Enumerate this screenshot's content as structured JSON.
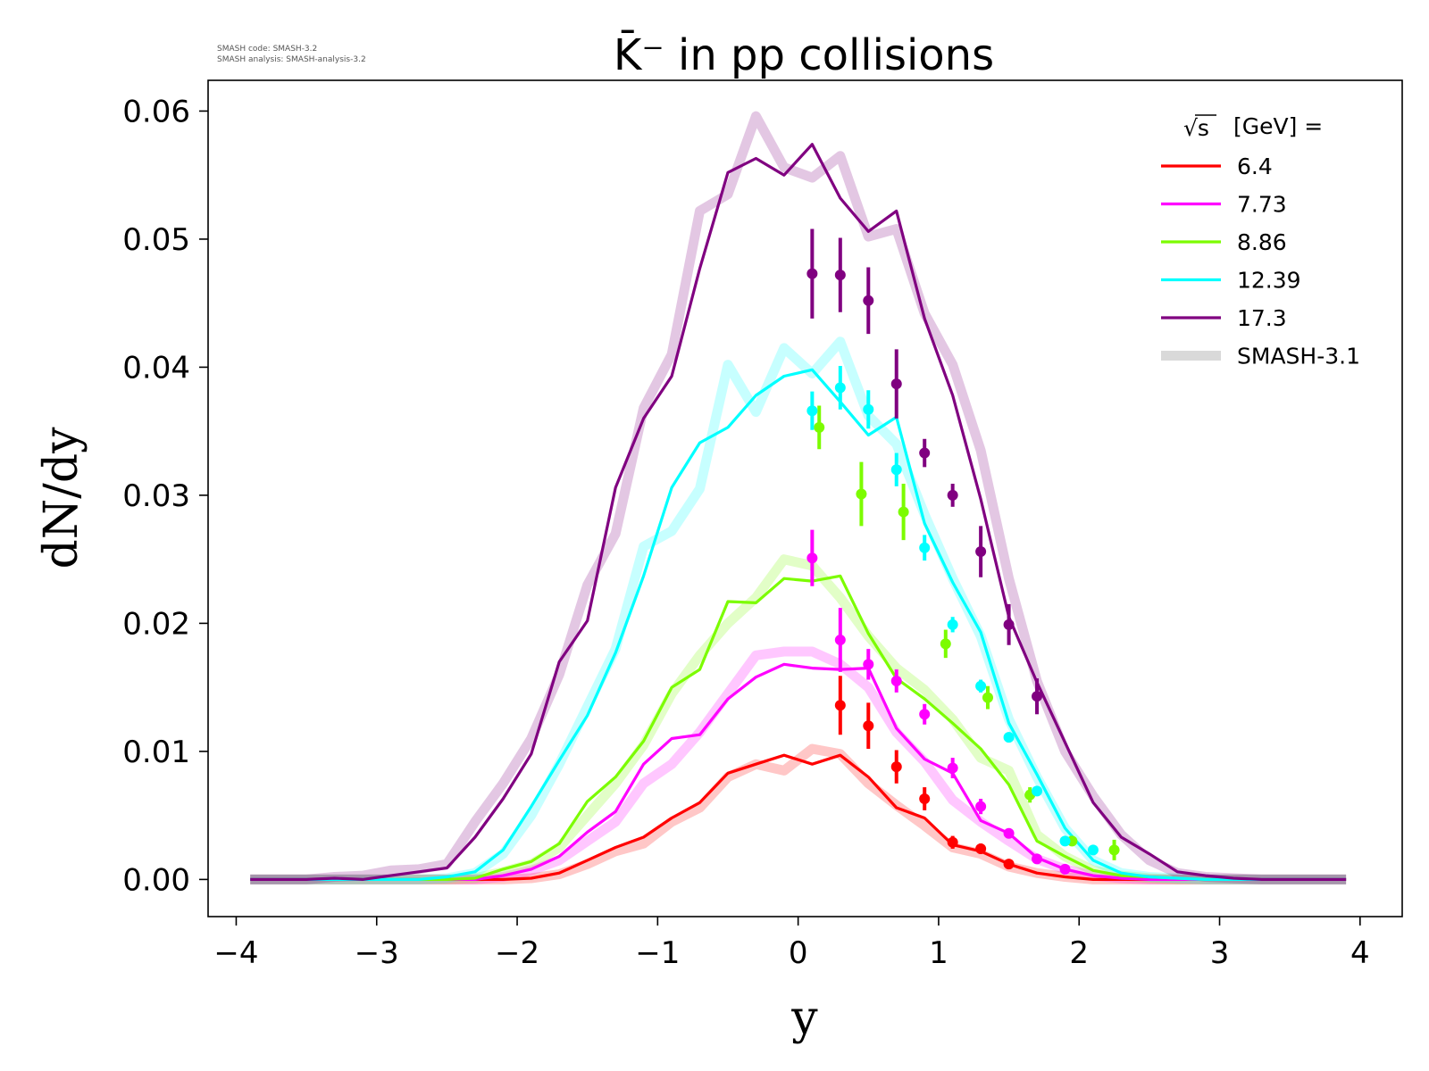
{
  "meta": {
    "line1": "SMASH code:      SMASH-3.2",
    "line2": "SMASH analysis: SMASH-analysis-3.2"
  },
  "chart_data": {
    "type": "line",
    "title": "K̄⁻ in pp collisions",
    "xlabel": "y",
    "ylabel": "dN/dy",
    "xlim": [
      -4.2,
      4.3
    ],
    "ylim": [
      -0.0029,
      0.0624
    ],
    "xticks": [
      -4,
      -3,
      -2,
      -1,
      0,
      1,
      2,
      3,
      4
    ],
    "xtick_labels": [
      "−4",
      "−3",
      "−2",
      "−1",
      "0",
      "1",
      "2",
      "3",
      "4"
    ],
    "yticks": [
      0.0,
      0.01,
      0.02,
      0.03,
      0.04,
      0.05,
      0.06
    ],
    "ytick_labels": [
      "0.00",
      "0.01",
      "0.02",
      "0.03",
      "0.04",
      "0.05",
      "0.06"
    ],
    "grid": false,
    "legend": {
      "placement": "top-right",
      "title": "[GeV] =",
      "title_symbol": "√s",
      "reference_label": "SMASH-3.1",
      "reference_color": "#d9d9d9"
    },
    "x": [
      -3.9,
      -3.7,
      -3.5,
      -3.3,
      -3.1,
      -2.9,
      -2.7,
      -2.5,
      -2.3,
      -2.1,
      -1.9,
      -1.7,
      -1.5,
      -1.3,
      -1.1,
      -0.9,
      -0.7,
      -0.5,
      -0.3,
      -0.1,
      0.1,
      0.3,
      0.5,
      0.7,
      0.9,
      1.1,
      1.3,
      1.5,
      1.7,
      1.9,
      2.1,
      2.3,
      2.5,
      2.7,
      2.9,
      3.1,
      3.3,
      3.5,
      3.7,
      3.9
    ],
    "series": [
      {
        "name": "6.4",
        "color": "#ff0000",
        "values": [
          0,
          0,
          0,
          0,
          0,
          0,
          0,
          0,
          0,
          0,
          0.0001,
          0.0005,
          0.0015,
          0.0025,
          0.0033,
          0.0048,
          0.006,
          0.0083,
          0.009,
          0.0097,
          0.009,
          0.0097,
          0.008,
          0.0056,
          0.0048,
          0.0027,
          0.0022,
          0.0012,
          0.0005,
          0.0002,
          0,
          0,
          0,
          0,
          0,
          0,
          0,
          0,
          0,
          0
        ],
        "reference": [
          0,
          0,
          0,
          0,
          0,
          0,
          0,
          0,
          0,
          0,
          0.0001,
          0.0004,
          0.0012,
          0.0022,
          0.0028,
          0.0045,
          0.0056,
          0.008,
          0.009,
          0.0085,
          0.0102,
          0.0098,
          0.0075,
          0.0058,
          0.0042,
          0.0025,
          0.002,
          0.001,
          0.0005,
          0.0002,
          0,
          0,
          0,
          0,
          0,
          0,
          0,
          0,
          0,
          0
        ],
        "points": {
          "x": [
            0.3,
            0.5,
            0.7,
            0.9,
            1.1,
            1.3,
            1.5
          ],
          "y": [
            0.0136,
            0.012,
            0.0088,
            0.0063,
            0.0029,
            0.0024,
            0.0012
          ],
          "err": [
            0.0023,
            0.0018,
            0.0013,
            0.0009,
            0.0005,
            0.0004,
            0.0003
          ]
        }
      },
      {
        "name": "7.73",
        "color": "#ff00ff",
        "values": [
          0,
          0,
          0,
          0,
          0,
          0,
          0,
          0,
          0,
          0.0003,
          0.0008,
          0.0018,
          0.0037,
          0.0053,
          0.009,
          0.011,
          0.0113,
          0.0141,
          0.0158,
          0.0168,
          0.0165,
          0.0164,
          0.0165,
          0.0118,
          0.0094,
          0.0083,
          0.0046,
          0.0036,
          0.0017,
          0.0008,
          0.0003,
          0.0001,
          0,
          0,
          0,
          0,
          0,
          0,
          0,
          0
        ],
        "reference": [
          0,
          0,
          0,
          0,
          0,
          0,
          0,
          0,
          0,
          0.0002,
          0.0007,
          0.0015,
          0.003,
          0.0045,
          0.0075,
          0.009,
          0.0115,
          0.0145,
          0.0175,
          0.0178,
          0.0178,
          0.0168,
          0.015,
          0.0115,
          0.0092,
          0.0062,
          0.0045,
          0.003,
          0.0016,
          0.0008,
          0.0003,
          0.0001,
          0,
          0,
          0,
          0,
          0,
          0,
          0,
          0
        ],
        "points": {
          "x": [
            0.1,
            0.3,
            0.5,
            0.7,
            0.9,
            1.1,
            1.3,
            1.5,
            1.7,
            1.9
          ],
          "y": [
            0.0251,
            0.0187,
            0.0168,
            0.0155,
            0.0129,
            0.0087,
            0.0057,
            0.0036,
            0.0016,
            0.0008
          ],
          "err": [
            0.0022,
            0.0025,
            0.0012,
            0.0009,
            0.0008,
            0.0008,
            0.0006,
            0.0004,
            0.0003,
            0.0002
          ]
        }
      },
      {
        "name": "8.86",
        "color": "#7cfc00",
        "values": [
          0,
          0,
          0,
          0,
          0,
          0,
          0,
          0,
          0.0001,
          0.0008,
          0.0014,
          0.0028,
          0.0061,
          0.008,
          0.0108,
          0.015,
          0.0164,
          0.0217,
          0.0216,
          0.0235,
          0.0233,
          0.0237,
          0.0192,
          0.0157,
          0.0141,
          0.0122,
          0.0102,
          0.0074,
          0.003,
          0.0018,
          0.0007,
          0.0003,
          0.0002,
          0.0001,
          0,
          0,
          0,
          0,
          0,
          0
        ],
        "reference": [
          0,
          0,
          0,
          0,
          0,
          0,
          0,
          0,
          0.0001,
          0.0006,
          0.0012,
          0.0025,
          0.005,
          0.0075,
          0.0105,
          0.0145,
          0.0175,
          0.02,
          0.022,
          0.025,
          0.0245,
          0.022,
          0.019,
          0.0165,
          0.0148,
          0.0125,
          0.0095,
          0.0085,
          0.0035,
          0.0018,
          0.0007,
          0.0003,
          0.0001,
          0,
          0,
          0,
          0,
          0,
          0,
          0
        ],
        "points": {
          "x": [
            0.15,
            0.45,
            0.75,
            1.05,
            1.35,
            1.65,
            1.95,
            2.25
          ],
          "y": [
            0.0353,
            0.0301,
            0.0287,
            0.0184,
            0.0142,
            0.0066,
            0.003,
            0.0023
          ],
          "err": [
            0.0017,
            0.0025,
            0.0022,
            0.0011,
            0.0009,
            0.0006,
            0.0004,
            0.0008
          ]
        }
      },
      {
        "name": "12.39",
        "color": "#00ffff",
        "values": [
          0,
          0,
          0,
          0,
          0,
          0,
          0,
          0.0002,
          0.0006,
          0.0023,
          0.0057,
          0.0093,
          0.0128,
          0.0177,
          0.0237,
          0.0306,
          0.0341,
          0.0353,
          0.0378,
          0.0393,
          0.0398,
          0.0373,
          0.0347,
          0.0361,
          0.0278,
          0.0232,
          0.0193,
          0.0122,
          0.0082,
          0.004,
          0.0015,
          0.0005,
          0.0002,
          0.0001,
          0,
          0,
          0,
          0,
          0,
          0
        ],
        "reference": [
          0,
          0,
          0,
          0,
          0,
          0,
          0,
          0.0001,
          0.0005,
          0.002,
          0.005,
          0.009,
          0.0135,
          0.018,
          0.026,
          0.0272,
          0.0305,
          0.0402,
          0.0365,
          0.0415,
          0.0395,
          0.042,
          0.0362,
          0.034,
          0.0285,
          0.0235,
          0.019,
          0.0125,
          0.008,
          0.004,
          0.0015,
          0.0005,
          0.0002,
          0.0001,
          0,
          0,
          0,
          0,
          0,
          0
        ],
        "points": {
          "x": [
            0.1,
            0.3,
            0.5,
            0.7,
            0.9,
            1.1,
            1.3,
            1.5,
            1.7,
            1.9,
            2.1
          ],
          "y": [
            0.0366,
            0.0384,
            0.0367,
            0.032,
            0.0259,
            0.0199,
            0.0151,
            0.0111,
            0.0069,
            0.003,
            0.0023
          ],
          "err": [
            0.0015,
            0.0017,
            0.0015,
            0.0013,
            0.001,
            0.0006,
            0.0005,
            0.0004,
            0.0003,
            0.0002,
            0.0002
          ]
        }
      },
      {
        "name": "17.3",
        "color": "#800080",
        "values": [
          0,
          0,
          0,
          0.0001,
          0,
          0.0003,
          0.0006,
          0.0009,
          0.0033,
          0.0063,
          0.0098,
          0.017,
          0.0202,
          0.0306,
          0.036,
          0.0393,
          0.0477,
          0.0552,
          0.0563,
          0.055,
          0.0574,
          0.0532,
          0.0506,
          0.0522,
          0.0438,
          0.0378,
          0.0297,
          0.0205,
          0.0154,
          0.0107,
          0.006,
          0.0033,
          0.002,
          0.0006,
          0.0003,
          0.0001,
          0,
          0,
          0,
          0
        ],
        "reference": [
          0,
          0,
          0,
          0.0002,
          0.0003,
          0.0007,
          0.0008,
          0.0012,
          0.0045,
          0.0075,
          0.011,
          0.016,
          0.023,
          0.027,
          0.0368,
          0.041,
          0.0522,
          0.0535,
          0.0596,
          0.0556,
          0.0548,
          0.0565,
          0.0502,
          0.0508,
          0.0442,
          0.0402,
          0.0335,
          0.0235,
          0.0155,
          0.01,
          0.0065,
          0.0035,
          0.0015,
          0.0005,
          0.0002,
          0.0001,
          0,
          0,
          0,
          0
        ],
        "points": {
          "x": [
            0.1,
            0.3,
            0.5,
            0.7,
            0.9,
            1.1,
            1.3,
            1.5,
            1.7
          ],
          "y": [
            0.0473,
            0.0472,
            0.0452,
            0.0387,
            0.0333,
            0.03,
            0.0256,
            0.0199,
            0.0143
          ],
          "err": [
            0.0035,
            0.0029,
            0.0026,
            0.0027,
            0.0011,
            0.0009,
            0.002,
            0.0016,
            0.0014
          ]
        }
      }
    ]
  }
}
